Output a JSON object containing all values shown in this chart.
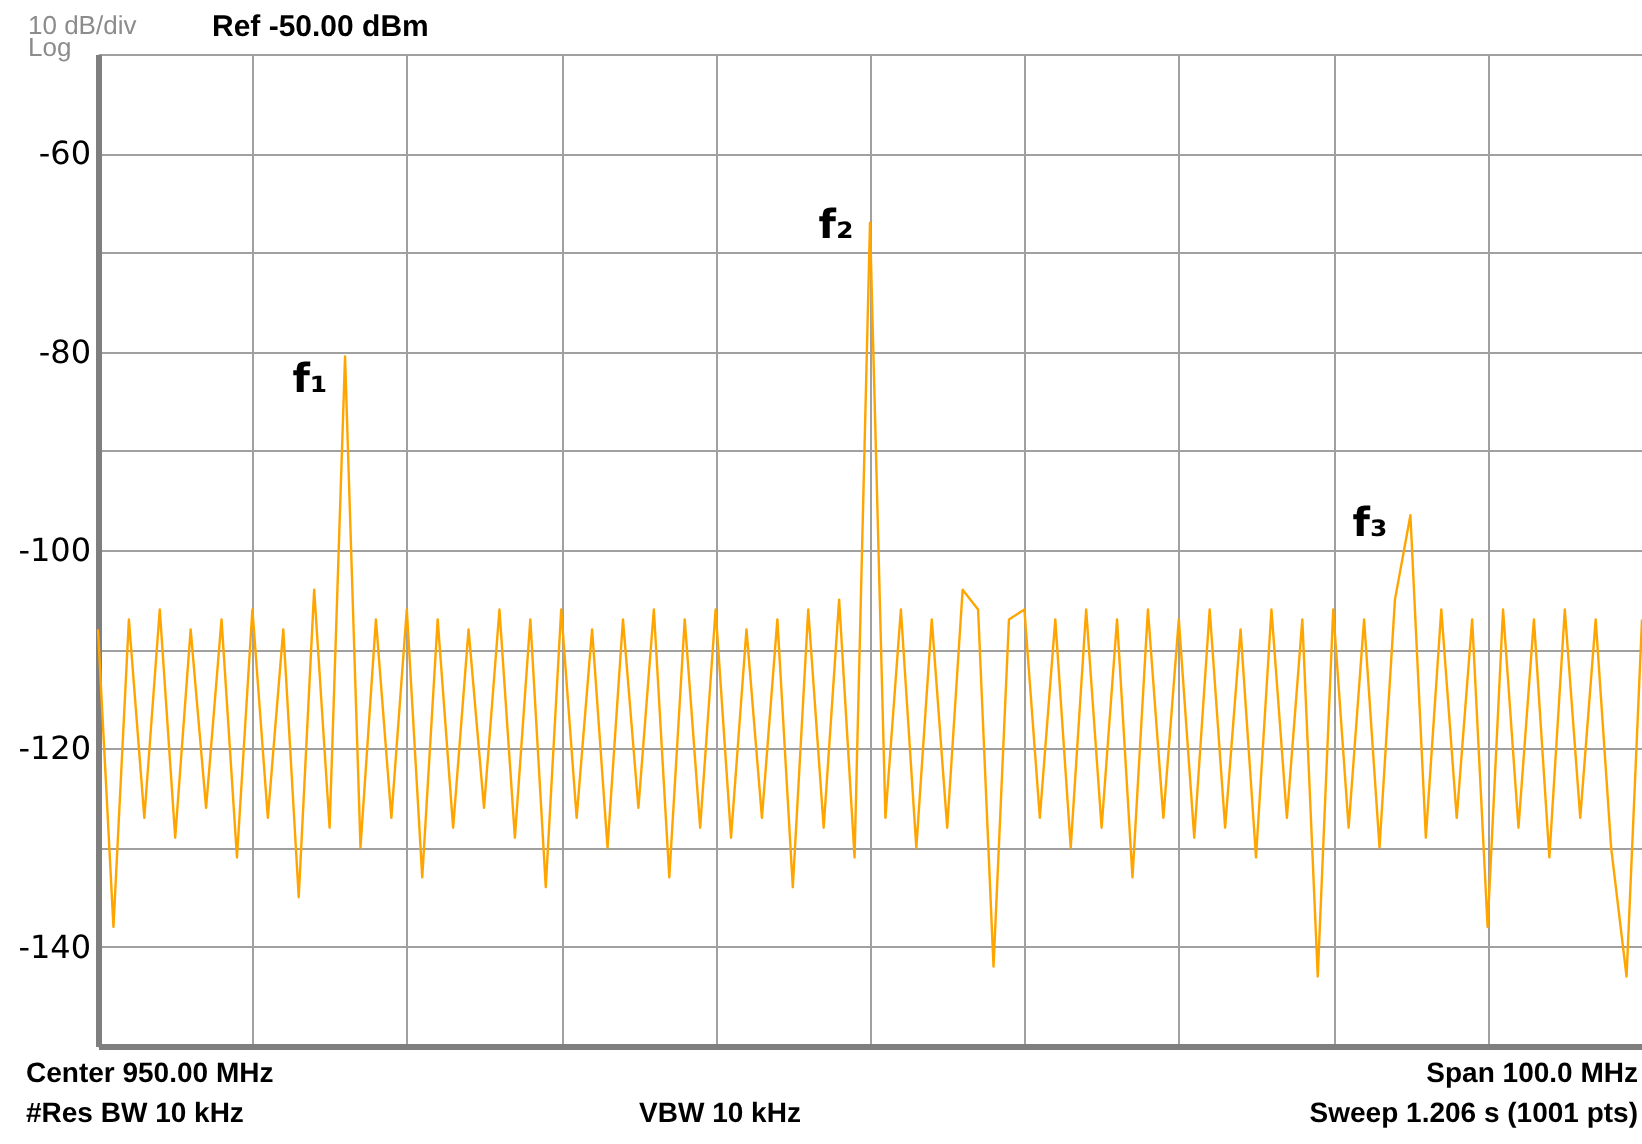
{
  "chart_data": {
    "type": "line",
    "categories": [
      null,
      null,
      null,
      null,
      null,
      null,
      null,
      null,
      null,
      null,
      null,
      null,
      null,
      null,
      null,
      null,
      null,
      null,
      null,
      null,
      null,
      null,
      null,
      null,
      null,
      null,
      null,
      null,
      null,
      null,
      null,
      null,
      null,
      null,
      null,
      null,
      null,
      null,
      null,
      null,
      null,
      null,
      null,
      null,
      null,
      null,
      null,
      null,
      null,
      null,
      null,
      null,
      null,
      null,
      null,
      null,
      null,
      null,
      null,
      null,
      null,
      null,
      null,
      null,
      null,
      null,
      null,
      null,
      null,
      null,
      null,
      null,
      null,
      null,
      null,
      null,
      null,
      null,
      null,
      null,
      null,
      null,
      null,
      null,
      null,
      null,
      null,
      null,
      null,
      null,
      null,
      null,
      null,
      null,
      null,
      null,
      null,
      null,
      null,
      null,
      null
    ],
    "series": [
      {
        "color": "#ffa500",
        "values": [
          -108,
          -138,
          -107,
          -127,
          -106,
          -129,
          -108,
          -126,
          -107,
          -131,
          -106,
          -127,
          -108,
          -135,
          -104,
          -128,
          -80.5,
          -130,
          -107,
          -127,
          -106,
          -133,
          -107,
          -128,
          -108,
          -126,
          -106,
          -129,
          -107,
          -134,
          -106,
          -127,
          -108,
          -130,
          -107,
          -126,
          -106,
          -133,
          -107,
          -128,
          -106,
          -129,
          -108,
          -127,
          -107,
          -134,
          -106,
          -128,
          -105,
          -131,
          -67,
          -127,
          -106,
          -130,
          -107,
          -128,
          -104,
          -106,
          -142,
          -107,
          -106,
          -127,
          -107,
          -130,
          -106,
          -128,
          -107,
          -133,
          -106,
          -127,
          -107,
          -129,
          -106,
          -128,
          -108,
          -131,
          -106,
          -127,
          -107,
          -143,
          -106,
          -128,
          -107,
          -130,
          -105,
          -96.5,
          -129,
          -106,
          -127,
          -107,
          -138,
          -106,
          -128,
          -107,
          -131,
          -106,
          -127,
          -107,
          -130,
          -143,
          -107
        ]
      }
    ],
    "ylim": [
      -150,
      -50
    ],
    "yticks": [
      {
        "value": -50,
        "label": null
      },
      -60,
      {
        "value": -70,
        "label": null
      },
      -80,
      {
        "value": -90,
        "label": null
      },
      -100,
      {
        "value": -110,
        "label": null
      },
      -120,
      {
        "value": -130,
        "label": null
      },
      -140,
      {
        "value": -150,
        "label": null
      }
    ],
    "grid": true,
    "tick_labels": "y",
    "marker": "none",
    "line_style": "solid",
    "annotations": [
      "10 dB/div",
      "Log",
      "Ref -50.00 dBm",
      "Center 950.00 MHz",
      "#Res BW 10 kHz",
      "VBW 10 kHz",
      "Span 100.0 MHz",
      "Sweep  1.206 s (1001 pts)",
      "f₁",
      "f₂",
      "f₃"
    ]
  }
}
